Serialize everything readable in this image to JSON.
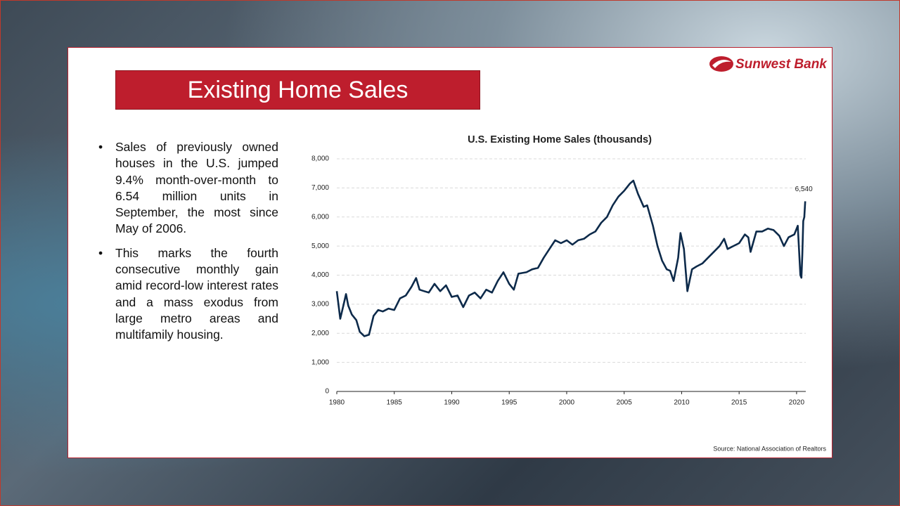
{
  "header": {
    "title": "Existing Home Sales",
    "brand": "Sunwest Bank"
  },
  "bullets": [
    "Sales of previously owned houses in the U.S. jumped 9.4% month-over-month to 6.54 million units in September, the most since May of 2006.",
    "This marks the fourth consecutive monthly gain amid record-low interest rates and a mass exodus from large metro areas and multifamily housing."
  ],
  "source": "Source: National Association of Realtors",
  "chart_data": {
    "type": "line",
    "title": "U.S. Existing Home Sales (thousands)",
    "color": "#0d2a4a",
    "annotation": "6,540",
    "grid": true,
    "xlim": [
      1980,
      2020.8
    ],
    "xticks": [
      1980,
      1985,
      1990,
      1995,
      2000,
      2005,
      2010,
      2015,
      2020
    ],
    "ylim": [
      0,
      8000
    ],
    "yticks": [
      0,
      {
        "value": 1000,
        "label": "1,000"
      },
      {
        "value": 2000,
        "label": "2,000"
      },
      {
        "value": 3000,
        "label": "3,000"
      },
      {
        "value": 4000,
        "label": "4,000"
      },
      {
        "value": 5000,
        "label": "5,000"
      },
      {
        "value": 6000,
        "label": "6,000"
      },
      {
        "value": 7000,
        "label": "7,000"
      },
      {
        "value": 8000,
        "label": "8,000"
      }
    ],
    "x": [
      1980.0,
      1980.3,
      1980.6,
      1980.8,
      1981.0,
      1981.3,
      1981.7,
      1982.0,
      1982.4,
      1982.8,
      1983.2,
      1983.6,
      1984.0,
      1984.5,
      1985.0,
      1985.5,
      1986.0,
      1986.5,
      1986.9,
      1987.2,
      1987.6,
      1988.0,
      1988.5,
      1989.0,
      1989.5,
      1990.0,
      1990.5,
      1991.0,
      1991.5,
      1992.0,
      1992.5,
      1993.0,
      1993.5,
      1994.0,
      1994.5,
      1995.0,
      1995.4,
      1995.8,
      1996.5,
      1997.0,
      1997.5,
      1998.0,
      1998.5,
      1999.0,
      1999.5,
      2000.0,
      2000.5,
      2001.0,
      2001.5,
      2002.0,
      2002.5,
      2003.0,
      2003.5,
      2004.0,
      2004.5,
      2005.0,
      2005.5,
      2005.8,
      2006.2,
      2006.7,
      2007.0,
      2007.5,
      2007.9,
      2008.3,
      2008.7,
      2009.0,
      2009.3,
      2009.7,
      2009.9,
      2010.2,
      2010.5,
      2010.9,
      2011.3,
      2011.8,
      2012.3,
      2012.8,
      2013.3,
      2013.7,
      2014.0,
      2014.5,
      2015.0,
      2015.5,
      2015.8,
      2016.0,
      2016.5,
      2017.0,
      2017.5,
      2018.0,
      2018.5,
      2018.9,
      2019.3,
      2019.8,
      2020.1,
      2020.33,
      2020.42,
      2020.5,
      2020.58,
      2020.67,
      2020.75
    ],
    "values": [
      3450,
      2500,
      3000,
      3350,
      2950,
      2650,
      2450,
      2050,
      1900,
      1950,
      2600,
      2800,
      2750,
      2850,
      2800,
      3200,
      3300,
      3600,
      3900,
      3500,
      3450,
      3400,
      3700,
      3450,
      3650,
      3250,
      3300,
      2900,
      3300,
      3400,
      3200,
      3500,
      3400,
      3800,
      4100,
      3700,
      3500,
      4050,
      4100,
      4200,
      4250,
      4600,
      4900,
      5200,
      5100,
      5200,
      5050,
      5200,
      5250,
      5400,
      5500,
      5800,
      6000,
      6400,
      6700,
      6900,
      7150,
      7250,
      6800,
      6350,
      6400,
      5700,
      5000,
      4500,
      4200,
      4150,
      3800,
      4600,
      5450,
      4900,
      3450,
      4200,
      4300,
      4400,
      4600,
      4800,
      5000,
      5250,
      4900,
      5000,
      5100,
      5400,
      5300,
      4800,
      5500,
      5500,
      5600,
      5550,
      5350,
      5000,
      5300,
      5400,
      5700,
      4000,
      3910,
      4720,
      5860,
      6000,
      6540
    ]
  }
}
